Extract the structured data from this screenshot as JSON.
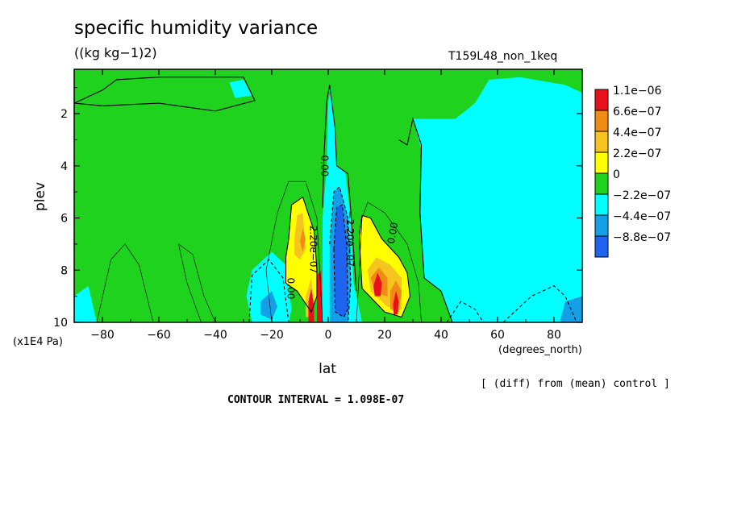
{
  "chart_data": {
    "type": "heatmap",
    "title": "specific humidity variance",
    "units": "((kg kg−1)2)",
    "run_label": "T159L48_non_1keq",
    "xlabel": "lat",
    "x_units": "(degrees_north)",
    "ylabel": "plev",
    "y_units": "(x1E4 Pa)",
    "xlim": [
      -90,
      90
    ],
    "ylim": [
      10,
      0.3
    ],
    "x_ticks": [
      -80,
      -60,
      -40,
      -20,
      0,
      20,
      40,
      60,
      80
    ],
    "y_ticks": [
      2,
      4,
      6,
      8,
      10
    ],
    "contour_interval_text": "CONTOUR INTERVAL = 1.098E-07",
    "diff_note": "[ (diff) from (mean) control ]",
    "contour_labels": [
      "0.00",
      "2.20e−07",
      "0.00",
      "−2.20e−07",
      "0.00"
    ],
    "legend": [
      {
        "label": "1.1e−06",
        "color": "#e8101a"
      },
      {
        "label": "6.6e−07",
        "color": "#f08c14"
      },
      {
        "label": "4.4e−07",
        "color": "#f5c41e"
      },
      {
        "label": "2.2e−07",
        "color": "#ffff00"
      },
      {
        "label": "0",
        "color": "#1ed21e"
      },
      {
        "label": "−2.2e−07",
        "color": "#00ffff"
      },
      {
        "label": "−4.4e−07",
        "color": "#14a0e6"
      },
      {
        "label": "−8.8e−07",
        "color": "#1e64f0"
      }
    ],
    "regions": [
      {
        "type": "rect",
        "lat": [
          -90,
          90
        ],
        "plev": [
          0.3,
          10
        ],
        "level": "0"
      },
      {
        "type": "poly",
        "level": "−2.2e−07",
        "pts": [
          [
            30,
            2.2
          ],
          [
            33,
            3.4
          ],
          [
            32.5,
            5.8
          ],
          [
            34,
            8.3
          ],
          [
            40,
            8.8
          ],
          [
            44,
            10
          ],
          [
            90,
            10
          ],
          [
            90,
            1.2
          ],
          [
            84,
            0.9
          ],
          [
            68,
            0.6
          ],
          [
            57,
            0.7
          ],
          [
            52,
            1.6
          ],
          [
            45,
            2.2
          ]
        ]
      },
      {
        "type": "poly",
        "level": "−2.2e−07",
        "pts": [
          [
            -35,
            0.8
          ],
          [
            -30,
            0.7
          ],
          [
            -27,
            1.3
          ],
          [
            -33,
            1.4
          ]
        ]
      },
      {
        "type": "poly",
        "level": "−2.2e−07",
        "pts": [
          [
            -90,
            9.0
          ],
          [
            -85,
            8.6
          ],
          [
            -82,
            10
          ],
          [
            -90,
            10
          ]
        ]
      },
      {
        "type": "poly",
        "level": "−2.2e−07",
        "pts": [
          [
            -27,
            8.0
          ],
          [
            -20,
            7.3
          ],
          [
            -15,
            7.8
          ],
          [
            -13,
            9.5
          ],
          [
            -14,
            10
          ],
          [
            -27,
            10
          ],
          [
            -29,
            9.0
          ]
        ]
      },
      {
        "type": "poly",
        "level": "−2.2e−07",
        "pts": [
          [
            -0.5,
            4.0
          ],
          [
            0,
            1.6
          ],
          [
            1,
            1.0
          ],
          [
            2.5,
            2.6
          ],
          [
            3,
            4.0
          ],
          [
            6,
            4.2
          ],
          [
            8,
            6.0
          ],
          [
            9,
            8.5
          ],
          [
            12,
            10
          ],
          [
            -2,
            10
          ],
          [
            -2,
            6.0
          ]
        ]
      },
      {
        "type": "poly",
        "level": "−4.4e−07",
        "pts": [
          [
            82,
            10
          ],
          [
            84,
            9.2
          ],
          [
            90,
            9.0
          ],
          [
            90,
            10
          ]
        ]
      },
      {
        "type": "poly",
        "level": "−4.4e−07",
        "pts": [
          [
            -24,
            9.2
          ],
          [
            -20,
            8.8
          ],
          [
            -18,
            9.4
          ],
          [
            -20,
            9.9
          ],
          [
            -24,
            9.7
          ]
        ]
      },
      {
        "type": "poly",
        "level": "−4.4e−07",
        "pts": [
          [
            0.5,
            7.0
          ],
          [
            2,
            5.0
          ],
          [
            4,
            4.8
          ],
          [
            7,
            6.0
          ],
          [
            8,
            8.5
          ],
          [
            7,
            10
          ],
          [
            0.5,
            10
          ]
        ]
      },
      {
        "type": "poly",
        "level": "−8.8e−07",
        "pts": [
          [
            2,
            7.2
          ],
          [
            3,
            5.6
          ],
          [
            5,
            5.5
          ],
          [
            6.5,
            7.0
          ],
          [
            7,
            9.5
          ],
          [
            5.5,
            9.8
          ],
          [
            2.5,
            9.6
          ]
        ]
      },
      {
        "type": "poly",
        "level": "2.2e−07",
        "pts": [
          [
            -14,
            6.8
          ],
          [
            -13,
            5.5
          ],
          [
            -9,
            5.2
          ],
          [
            -5,
            6.5
          ],
          [
            -4,
            8.0
          ],
          [
            -4,
            9.0
          ],
          [
            -6,
            9.6
          ],
          [
            -11,
            8.8
          ],
          [
            -15,
            8.5
          ],
          [
            -15,
            7.5
          ]
        ]
      },
      {
        "type": "poly",
        "level": "2.2e−07",
        "pts": [
          [
            11,
            6.7
          ],
          [
            12,
            5.9
          ],
          [
            15,
            6.0
          ],
          [
            19,
            6.8
          ],
          [
            25,
            7.5
          ],
          [
            28,
            8.1
          ],
          [
            29,
            9.0
          ],
          [
            26,
            9.8
          ],
          [
            20,
            9.6
          ],
          [
            12,
            8.7
          ],
          [
            11.5,
            7.8
          ]
        ]
      },
      {
        "type": "poly",
        "level": "4.4e−07",
        "pts": [
          [
            -12,
            6.8
          ],
          [
            -11,
            5.9
          ],
          [
            -9,
            5.8
          ],
          [
            -8,
            7.2
          ],
          [
            -10,
            7.6
          ],
          [
            -12,
            7.4
          ]
        ]
      },
      {
        "type": "poly",
        "level": "4.4e−07",
        "pts": [
          [
            -8,
            9.0
          ],
          [
            -6,
            8.3
          ],
          [
            -5,
            9.2
          ],
          [
            -6,
            9.8
          ],
          [
            -8,
            9.8
          ]
        ]
      },
      {
        "type": "poly",
        "level": "4.4e−07",
        "pts": [
          [
            14,
            8.0
          ],
          [
            17,
            7.5
          ],
          [
            22,
            7.8
          ],
          [
            26,
            8.3
          ],
          [
            26,
            9.5
          ],
          [
            21,
            9.4
          ],
          [
            15,
            8.8
          ]
        ]
      },
      {
        "type": "poly",
        "level": "6.6e−07",
        "pts": [
          [
            -10,
            6.9
          ],
          [
            -9,
            6.4
          ],
          [
            -8,
            6.8
          ],
          [
            -9,
            7.3
          ]
        ]
      },
      {
        "type": "poly",
        "level": "6.6e−07",
        "pts": [
          [
            15,
            8.3
          ],
          [
            18,
            7.9
          ],
          [
            21,
            8.3
          ],
          [
            21,
            9.0
          ],
          [
            17,
            8.9
          ]
        ]
      },
      {
        "type": "poly",
        "level": "6.6e−07",
        "pts": [
          [
            22,
            8.8
          ],
          [
            24,
            8.4
          ],
          [
            26,
            8.8
          ],
          [
            25,
            9.6
          ],
          [
            22,
            9.5
          ]
        ]
      },
      {
        "type": "poly",
        "level": "1.1e−06",
        "pts": [
          [
            -7,
            9.2
          ],
          [
            -6,
            8.7
          ],
          [
            -5,
            9.4
          ],
          [
            -5,
            10
          ],
          [
            -7,
            10
          ]
        ]
      },
      {
        "type": "poly",
        "level": "1.1e−06",
        "pts": [
          [
            16,
            8.6
          ],
          [
            17.5,
            8.1
          ],
          [
            19,
            8.5
          ],
          [
            18.5,
            9.0
          ],
          [
            16.5,
            9.0
          ]
        ]
      },
      {
        "type": "poly",
        "level": "1.1e−06",
        "pts": [
          [
            23,
            9.3
          ],
          [
            24,
            8.8
          ],
          [
            25,
            9.2
          ],
          [
            24.5,
            9.7
          ],
          [
            23.2,
            9.7
          ]
        ]
      },
      {
        "type": "poly",
        "level": "1.1e−06",
        "pts": [
          [
            -4,
            8.2
          ],
          [
            -2.5,
            8.0
          ],
          [
            -2,
            10
          ],
          [
            -4,
            10
          ]
        ]
      }
    ],
    "contours": [
      {
        "style": "solid",
        "pts": [
          [
            -90,
            1.6
          ],
          [
            -80,
            1.1
          ],
          [
            -75,
            0.7
          ],
          [
            -60,
            0.6
          ],
          [
            -40,
            0.6
          ],
          [
            -30,
            0.6
          ],
          [
            -26,
            1.5
          ],
          [
            -40,
            1.9
          ],
          [
            -60,
            1.6
          ],
          [
            -80,
            1.7
          ],
          [
            -90,
            1.6
          ]
        ]
      },
      {
        "style": "solid",
        "pts": [
          [
            -2,
            5.6
          ],
          [
            -1.5,
            3.6
          ],
          [
            -0.5,
            1.5
          ],
          [
            0.5,
            0.9
          ],
          [
            2.5,
            2.6
          ],
          [
            3,
            4.0
          ],
          [
            7,
            4.3
          ],
          [
            8.5,
            6.5
          ],
          [
            10,
            8.8
          ]
        ]
      },
      {
        "style": "solid",
        "pts": [
          [
            25,
            3.0
          ],
          [
            28,
            3.2
          ],
          [
            30,
            2.2
          ],
          [
            33,
            3.2
          ],
          [
            32.5,
            5.8
          ],
          [
            34,
            8.3
          ],
          [
            40,
            8.8
          ],
          [
            44,
            10
          ]
        ]
      },
      {
        "style": "solid",
        "pts": [
          [
            -14,
            6.8
          ],
          [
            -13,
            5.5
          ],
          [
            -9,
            5.2
          ],
          [
            -5,
            6.5
          ],
          [
            -4,
            8.0
          ],
          [
            -4,
            9.0
          ],
          [
            -6,
            9.6
          ],
          [
            -11,
            8.8
          ],
          [
            -15,
            8.5
          ],
          [
            -15,
            7.5
          ],
          [
            -14,
            6.8
          ]
        ]
      },
      {
        "style": "solid",
        "pts": [
          [
            11,
            6.7
          ],
          [
            12,
            5.9
          ],
          [
            15,
            6.0
          ],
          [
            19,
            6.8
          ],
          [
            25,
            7.5
          ],
          [
            28,
            8.1
          ],
          [
            29,
            9.0
          ],
          [
            26,
            9.8
          ],
          [
            20,
            9.6
          ],
          [
            12,
            8.7
          ],
          [
            11.5,
            7.8
          ],
          [
            11,
            6.7
          ]
        ]
      },
      {
        "style": "thin",
        "pts": [
          [
            -20,
            10
          ],
          [
            -22,
            8.0
          ],
          [
            -18,
            5.8
          ],
          [
            -14,
            4.6
          ],
          [
            -8,
            4.6
          ],
          [
            -4,
            6.0
          ],
          [
            -2,
            10
          ]
        ]
      },
      {
        "style": "thin",
        "pts": [
          [
            -45,
            10
          ],
          [
            -50,
            8.5
          ],
          [
            -53,
            7.0
          ],
          [
            -48,
            7.4
          ],
          [
            -44,
            9.0
          ],
          [
            -40,
            10
          ]
        ]
      },
      {
        "style": "thin",
        "pts": [
          [
            -62,
            10
          ],
          [
            -67,
            7.8
          ],
          [
            -72,
            7.0
          ],
          [
            -77,
            7.6
          ],
          [
            -82,
            10
          ]
        ]
      },
      {
        "style": "thin",
        "pts": [
          [
            10,
            10
          ],
          [
            12,
            6.0
          ],
          [
            14,
            5.4
          ],
          [
            20,
            5.8
          ],
          [
            28,
            7.0
          ],
          [
            32,
            8.5
          ],
          [
            33,
            10
          ]
        ]
      },
      {
        "style": "dashed",
        "pts": [
          [
            2,
            7.2
          ],
          [
            3,
            5.6
          ],
          [
            5,
            5.5
          ],
          [
            6.5,
            7.0
          ],
          [
            7,
            9.5
          ],
          [
            5.5,
            9.8
          ],
          [
            2.5,
            9.6
          ],
          [
            2,
            7.2
          ]
        ]
      },
      {
        "style": "dashed",
        "pts": [
          [
            0.5,
            7.0
          ],
          [
            2,
            5.0
          ],
          [
            4,
            4.8
          ],
          [
            7,
            6.0
          ],
          [
            8,
            8.5
          ],
          [
            7,
            10
          ]
        ]
      },
      {
        "style": "dashed",
        "pts": [
          [
            62,
            10
          ],
          [
            66,
            9.6
          ],
          [
            72,
            9.0
          ],
          [
            80,
            8.6
          ],
          [
            84,
            9.0
          ],
          [
            88,
            10
          ]
        ]
      },
      {
        "style": "dashed",
        "pts": [
          [
            42,
            10
          ],
          [
            47,
            9.2
          ],
          [
            52,
            9.5
          ],
          [
            55,
            10
          ]
        ]
      },
      {
        "style": "dashed",
        "pts": [
          [
            -28,
            10
          ],
          [
            -27,
            8.2
          ],
          [
            -21,
            7.6
          ],
          [
            -16,
            8.3
          ],
          [
            -14,
            10
          ]
        ]
      }
    ]
  }
}
